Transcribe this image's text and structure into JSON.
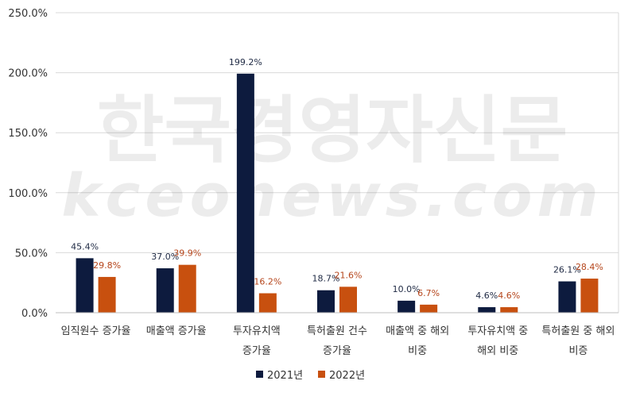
{
  "chart_data": {
    "type": "bar",
    "categories": [
      [
        "임직원수 증가율"
      ],
      [
        "매출액 증가율"
      ],
      [
        "투자유치액",
        "증가율"
      ],
      [
        "특허출원 건수",
        "증가율"
      ],
      [
        "매출액 중 해외",
        "비중"
      ],
      [
        "투자유치액 중",
        "해외 비중"
      ],
      [
        "특허출원 중 해외",
        "비증"
      ]
    ],
    "series": [
      {
        "name": "2021년",
        "color": "#0d1b3e",
        "label_color": "#1f2a44",
        "values": [
          45.4,
          37.0,
          199.2,
          18.7,
          10.0,
          4.6,
          26.1
        ],
        "labels": [
          "45.4%",
          "37.0%",
          "199.2%",
          "18.7%",
          "10.0%",
          "4.6%",
          "26.1%"
        ]
      },
      {
        "name": "2022년",
        "color": "#c8500f",
        "label_color": "#b5451b",
        "values": [
          29.8,
          39.9,
          16.2,
          21.6,
          6.7,
          4.6,
          28.4
        ],
        "labels": [
          "29.8%",
          "39.9%",
          "16.2%",
          "21.6%",
          "6.7%",
          "4.6%",
          "28.4%"
        ]
      }
    ],
    "ylim": [
      0,
      250
    ],
    "yticks": [
      0,
      50,
      100,
      150,
      200,
      250
    ],
    "ytick_labels": [
      "0.0%",
      "50.0%",
      "100.0%",
      "150.0%",
      "200.0%",
      "250.0%"
    ],
    "grid": true,
    "legend_position": "bottom-center",
    "watermark": [
      "한국경영자신문",
      "kceonews.com"
    ]
  }
}
